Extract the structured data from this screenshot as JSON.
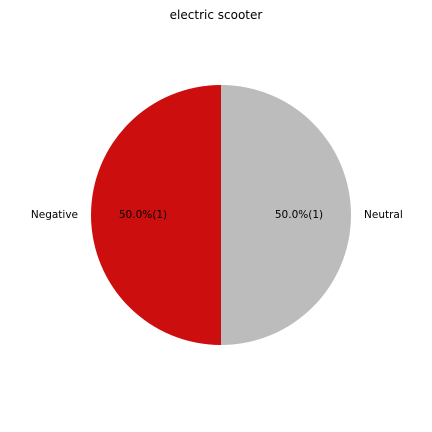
{
  "chart_data": {
    "type": "pie",
    "title": "electric scooter",
    "slices": [
      {
        "label": "Negative",
        "value": 1,
        "percent_label": "50.0%(1)",
        "color": "#cc0e0e"
      },
      {
        "label": "Neutral",
        "value": 1,
        "percent_label": "50.0%(1)",
        "color": "#bcbcbc"
      }
    ],
    "start_angle_deg": 90,
    "direction": "counterclockwise"
  }
}
